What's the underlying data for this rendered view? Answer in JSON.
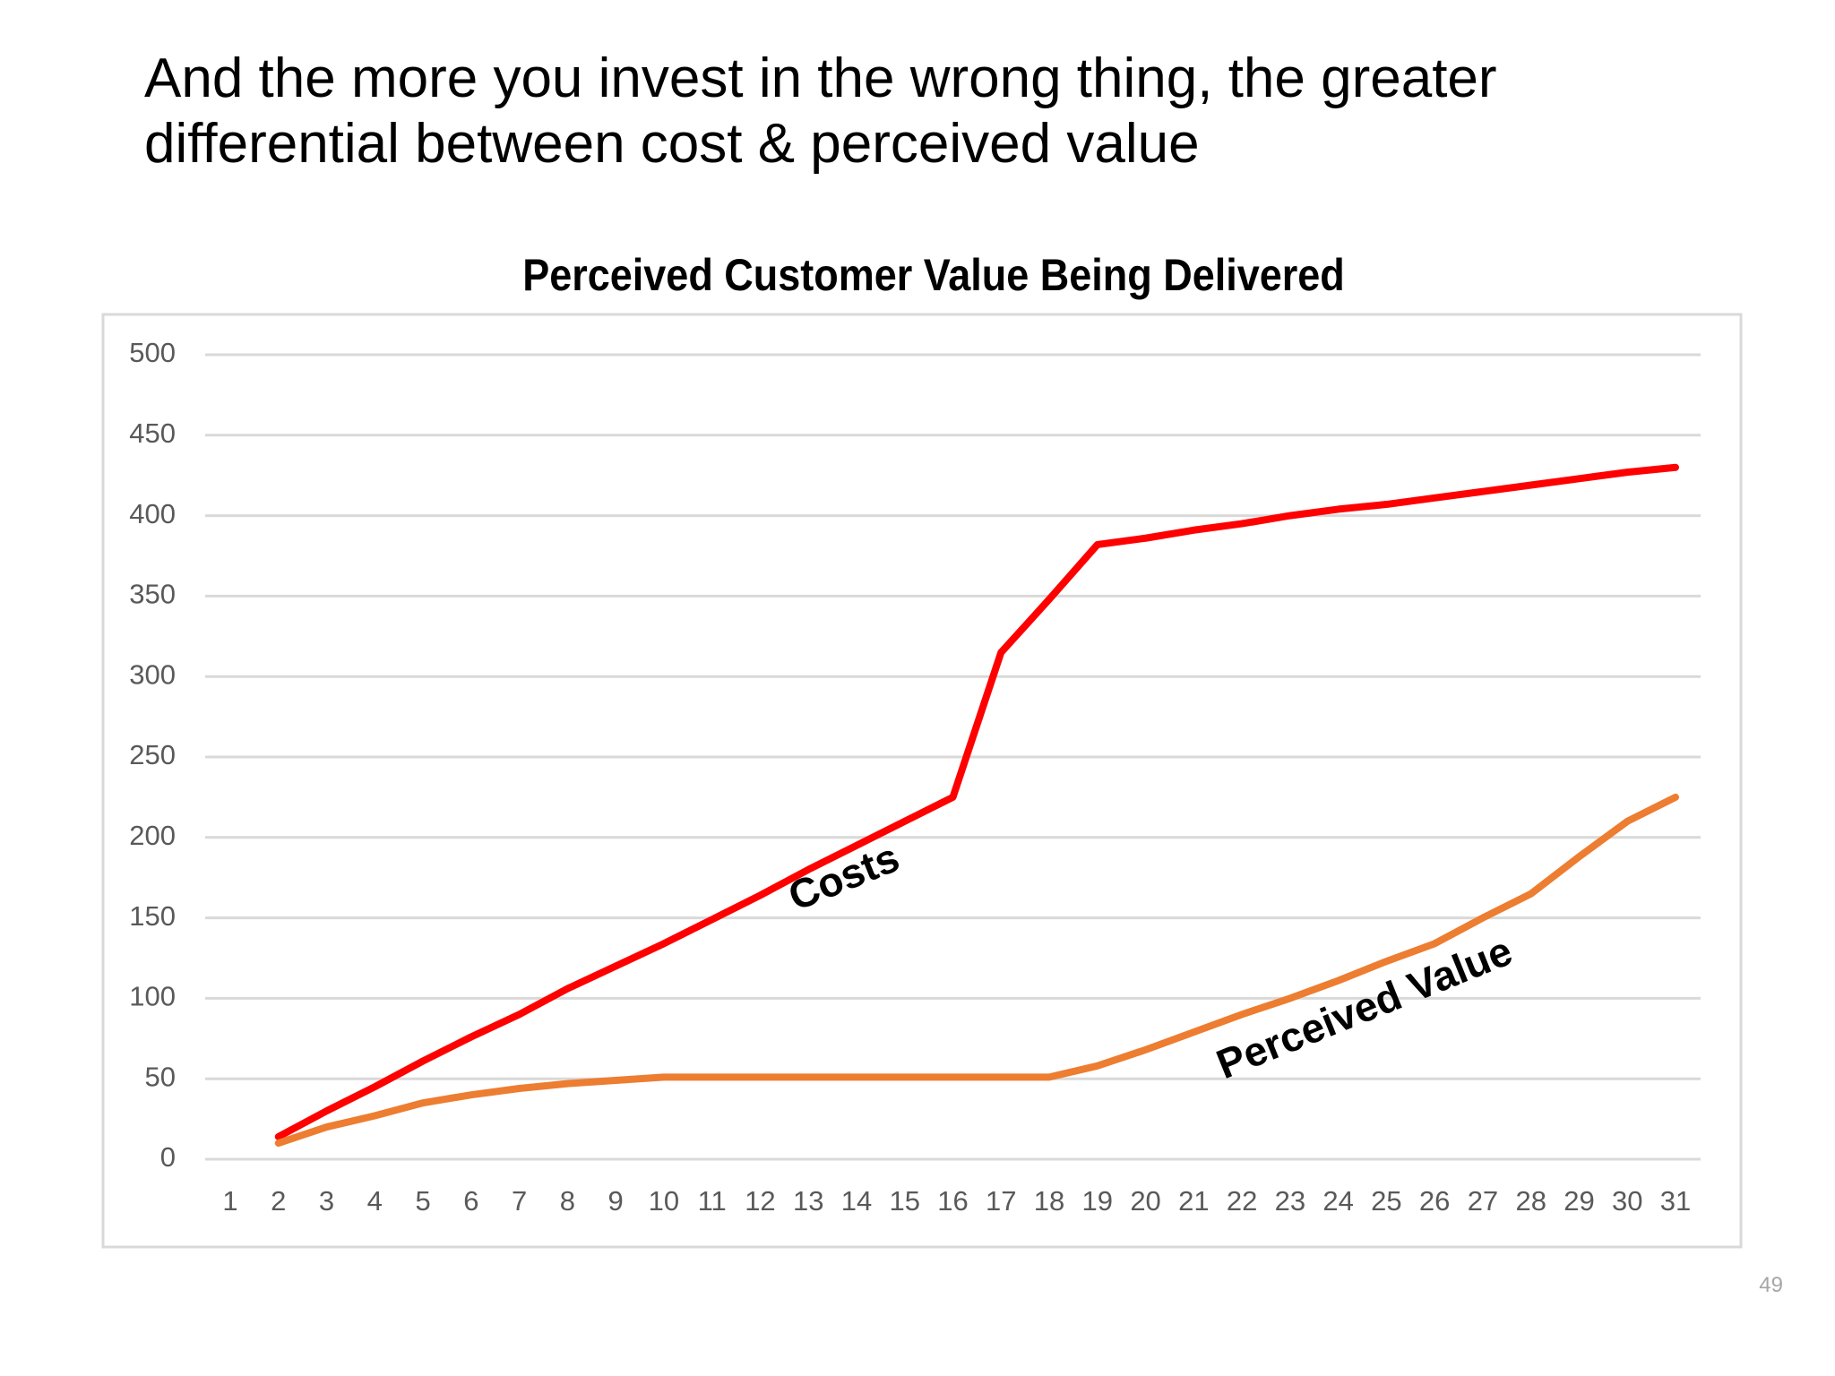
{
  "heading": "And the more you invest in the wrong thing, the greater differential between cost & perceived value",
  "page_number": "49",
  "chart_data": {
    "type": "line",
    "title": "Perceived Customer Value Being Delivered",
    "categories": [
      "1",
      "2",
      "3",
      "4",
      "5",
      "6",
      "7",
      "8",
      "9",
      "10",
      "11",
      "12",
      "13",
      "14",
      "15",
      "16",
      "17",
      "18",
      "19",
      "20",
      "21",
      "22",
      "23",
      "24",
      "25",
      "26",
      "27",
      "28",
      "29",
      "30",
      "31"
    ],
    "series": [
      {
        "name": "Costs",
        "color": "#ff0000",
        "values": [
          null,
          14,
          30,
          45,
          61,
          76,
          90,
          106,
          120,
          134,
          149,
          164,
          180,
          195,
          210,
          225,
          315,
          348,
          382,
          386,
          391,
          395,
          400,
          404,
          407,
          411,
          415,
          419,
          423,
          427,
          430
        ]
      },
      {
        "name": "Perceived Value",
        "color": "#ed7d31",
        "values": [
          null,
          10,
          20,
          27,
          35,
          40,
          44,
          47,
          49,
          51,
          51,
          51,
          51,
          51,
          51,
          51,
          51,
          51,
          58,
          68,
          79,
          90,
          100,
          111,
          123,
          134,
          150,
          165,
          188,
          210,
          225
        ]
      }
    ],
    "ylim": [
      0,
      500
    ],
    "yticks": [
      0,
      50,
      100,
      150,
      200,
      250,
      300,
      350,
      400,
      450,
      500
    ],
    "grid": true,
    "legend": false
  }
}
